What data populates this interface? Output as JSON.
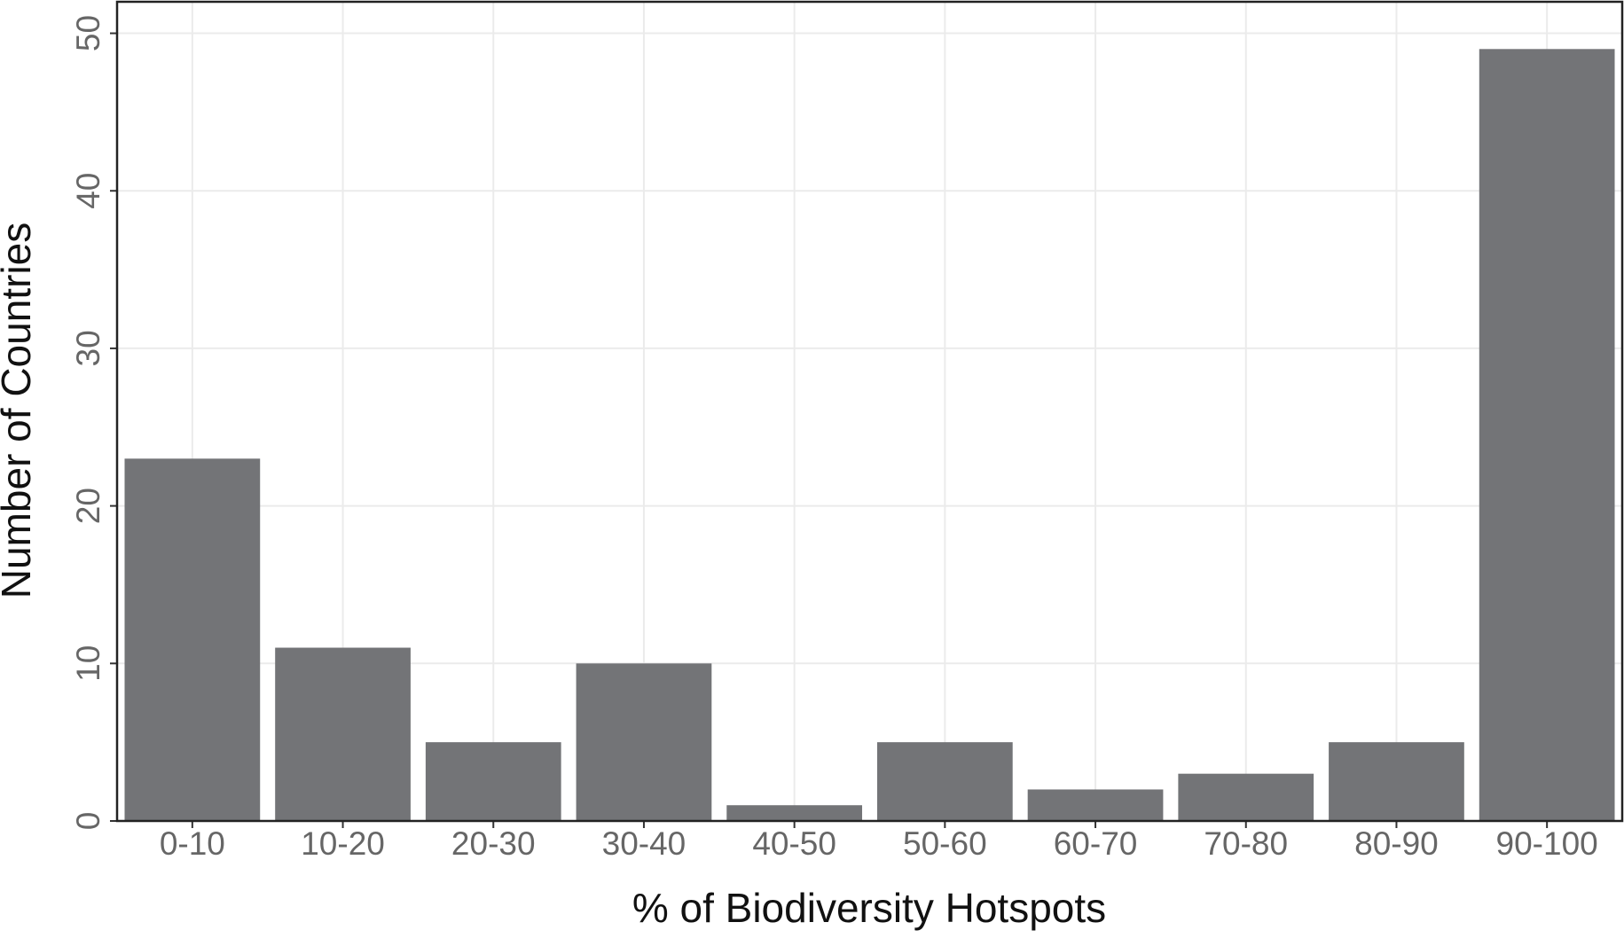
{
  "chart_data": {
    "type": "bar",
    "x_label": "% of Biodiversity Hotspots",
    "y_label": "Number of Countries",
    "categories": [
      "0-10",
      "10-20",
      "20-30",
      "30-40",
      "40-50",
      "50-60",
      "60-70",
      "70-80",
      "80-90",
      "90-100"
    ],
    "values": [
      23,
      11,
      5,
      10,
      1,
      5,
      2,
      3,
      5,
      49
    ],
    "color": "#737477",
    "ylim": [
      0,
      52
    ],
    "yticks": [
      0,
      10,
      20,
      30,
      40,
      50
    ],
    "grid": true
  }
}
